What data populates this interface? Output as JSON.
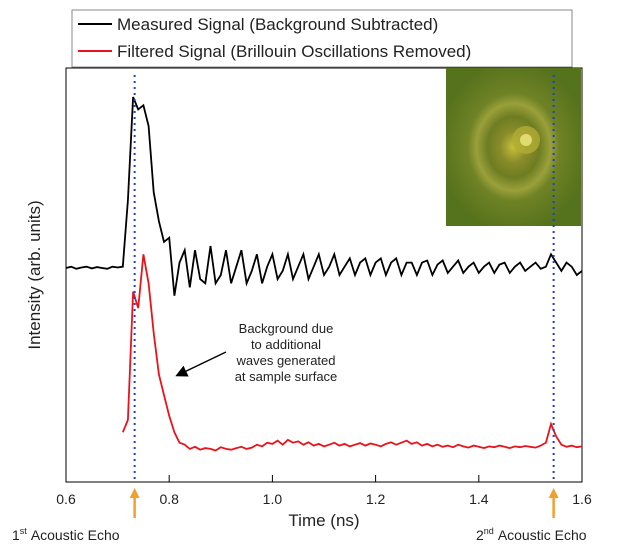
{
  "chart_data": {
    "type": "line",
    "xlabel": "Time (ns)",
    "ylabel": "Intensity (arb. units)",
    "xlim": [
      0.6,
      1.6
    ],
    "xticks": [
      0.6,
      0.8,
      {
        "value": 1,
        "label": "1.0"
      },
      1.2,
      1.4,
      1.6
    ],
    "ylim": [
      0,
      10
    ],
    "legend": "top",
    "x": [
      0.6,
      0.61,
      0.62,
      0.63,
      0.64,
      0.65,
      0.66,
      0.67,
      0.68,
      0.69,
      0.7,
      0.71,
      0.72,
      0.73,
      0.74,
      0.75,
      0.76,
      0.77,
      0.78,
      0.79,
      0.8,
      0.81,
      0.82,
      0.83,
      0.84,
      0.85,
      0.86,
      0.87,
      0.88,
      0.89,
      0.9,
      0.91,
      0.92,
      0.93,
      0.94,
      0.95,
      0.96,
      0.97,
      0.98,
      0.99,
      1,
      1.01,
      1.02,
      1.03,
      1.04,
      1.05,
      1.06,
      1.07,
      1.08,
      1.09,
      1.1,
      1.11,
      1.12,
      1.13,
      1.14,
      1.15,
      1.16,
      1.17,
      1.18,
      1.19,
      1.2,
      1.21,
      1.22,
      1.23,
      1.24,
      1.25,
      1.26,
      1.27,
      1.28,
      1.29,
      1.3,
      1.31,
      1.32,
      1.33,
      1.34,
      1.35,
      1.36,
      1.37,
      1.38,
      1.39,
      1.4,
      1.41,
      1.42,
      1.43,
      1.44,
      1.45,
      1.46,
      1.47,
      1.48,
      1.49,
      1.5,
      1.51,
      1.52,
      1.53,
      1.54,
      1.55,
      1.56,
      1.57,
      1.58,
      1.59,
      1.6
    ],
    "series": [
      {
        "name": "Measured Signal (Background Subtracted)",
        "color": "#000000",
        "values": [
          5.17,
          5.2,
          5.15,
          5.18,
          5.2,
          5.16,
          5.19,
          5.17,
          5.15,
          5.2,
          5.18,
          5.2,
          6.8,
          9.3,
          9.0,
          9.1,
          8.6,
          7.0,
          6.3,
          5.8,
          5.9,
          4.5,
          5.3,
          5.6,
          4.7,
          5.6,
          4.9,
          4.8,
          5.7,
          4.8,
          5.0,
          5.6,
          4.8,
          5.2,
          5.6,
          4.8,
          5.1,
          5.5,
          4.8,
          5.2,
          5.5,
          4.9,
          5.1,
          5.5,
          4.9,
          5.2,
          5.5,
          4.9,
          5.2,
          5.5,
          5.0,
          5.2,
          5.5,
          5.0,
          5.2,
          5.4,
          5.0,
          5.3,
          5.4,
          5.0,
          5.3,
          5.4,
          5.0,
          5.3,
          5.4,
          5.0,
          5.3,
          5.3,
          5.0,
          5.3,
          5.35,
          5.0,
          5.25,
          5.35,
          5.05,
          5.2,
          5.35,
          5.05,
          5.2,
          5.3,
          5.05,
          5.2,
          5.3,
          5.05,
          5.25,
          5.3,
          5.05,
          5.2,
          5.3,
          5.1,
          5.2,
          5.3,
          5.15,
          5.2,
          5.5,
          5.3,
          5.1,
          5.3,
          5.2,
          5.0,
          5.1
        ]
      },
      {
        "name": "Filtered Signal (Brillouin Oscillations Removed)",
        "color": "#e8141b",
        "values": [
          null,
          null,
          null,
          null,
          null,
          null,
          null,
          null,
          null,
          null,
          null,
          1.2,
          1.5,
          4.6,
          4.2,
          5.5,
          4.8,
          3.6,
          2.6,
          2.1,
          1.6,
          1.2,
          0.95,
          0.9,
          0.8,
          0.85,
          0.78,
          0.82,
          0.8,
          0.76,
          0.84,
          0.8,
          0.78,
          0.82,
          0.85,
          0.8,
          0.83,
          0.9,
          0.86,
          0.95,
          0.92,
          1.0,
          0.9,
          1.02,
          0.95,
          0.98,
          0.9,
          0.96,
          0.88,
          0.92,
          0.86,
          0.9,
          0.95,
          0.88,
          0.92,
          0.86,
          0.9,
          0.94,
          0.88,
          0.93,
          0.9,
          0.86,
          0.92,
          0.96,
          0.9,
          0.95,
          1.0,
          0.92,
          0.96,
          0.88,
          0.92,
          0.86,
          0.9,
          0.85,
          0.88,
          0.84,
          0.9,
          0.86,
          0.83,
          0.88,
          0.85,
          0.82,
          0.86,
          0.84,
          0.88,
          0.85,
          0.82,
          0.86,
          0.84,
          0.87,
          0.85,
          0.83,
          0.88,
          0.95,
          1.4,
          1.1,
          0.9,
          0.85,
          0.88,
          0.84,
          0.86
        ]
      }
    ],
    "annotation": [
      "Background due",
      "to additional",
      "waves generated",
      "at sample surface"
    ],
    "echoes": [
      {
        "x": 0.733,
        "ordinal": "1",
        "suffix": "st",
        "label": "Acoustic Echo"
      },
      {
        "x": 1.545,
        "ordinal": "2",
        "suffix": "nd",
        "label": "Acoustic Echo"
      }
    ]
  }
}
